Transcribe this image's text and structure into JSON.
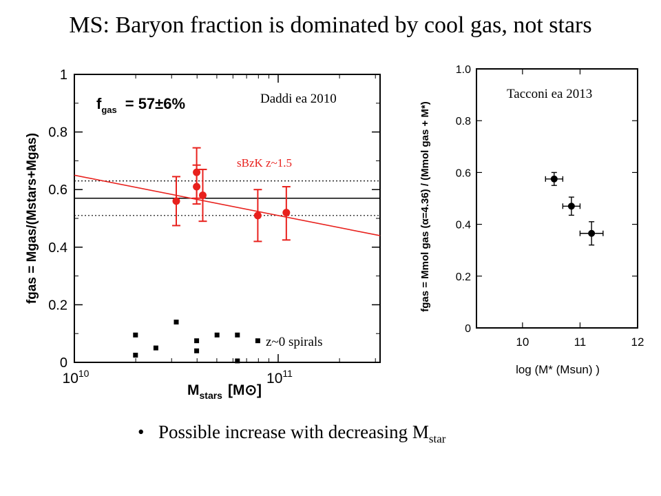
{
  "slide": {
    "title": "MS: Baryon fraction is dominated by cool gas, not stars",
    "bullet_prefix": "Possible increase with decreasing M",
    "bullet_sub": "star"
  },
  "chart_data": [
    {
      "type": "scatter",
      "annotation": "Daddi ea 2010",
      "xlabel": "M",
      "xlabel_sub": "stars",
      "xlabel_unit": "[M⊙]",
      "ylabel": "fgas = Mgas/(Mstars+Mgas)",
      "xscale": "log",
      "xlim": [
        10.0,
        11.5
      ],
      "ylim": [
        0,
        1
      ],
      "xticks_major": [
        {
          "value": 10,
          "mantissa": "10",
          "exp": "10"
        },
        {
          "value": 11,
          "mantissa": "10",
          "exp": "11"
        }
      ],
      "yticks": [
        0,
        0.2,
        0.4,
        0.6,
        0.8,
        1
      ],
      "ytick_labels": [
        "0",
        "0.2",
        "0.4",
        "0.6",
        "0.8",
        "1"
      ],
      "fgas_label": "f",
      "fgas_sub": "gas",
      "fgas_value": "= 57±6%",
      "series": [
        {
          "name": "sBzK z~1.5",
          "color": "#e8211d",
          "marker": "circle",
          "points": [
            {
              "x": 10.5,
              "y": 0.56,
              "ylo": 0.475,
              "yhi": 0.645
            },
            {
              "x": 10.6,
              "y": 0.61,
              "ylo": 0.55,
              "yhi": 0.685
            },
            {
              "x": 10.6,
              "y": 0.66,
              "ylo": 0.57,
              "yhi": 0.745
            },
            {
              "x": 10.63,
              "y": 0.58,
              "ylo": 0.49,
              "yhi": 0.67
            },
            {
              "x": 10.9,
              "y": 0.51,
              "ylo": 0.42,
              "yhi": 0.6
            },
            {
              "x": 11.04,
              "y": 0.52,
              "ylo": 0.425,
              "yhi": 0.61
            }
          ]
        },
        {
          "name": "z~0 spirals",
          "color": "#000000",
          "marker": "square",
          "points": [
            {
              "x": 10.3,
              "y": 0.095
            },
            {
              "x": 10.3,
              "y": 0.025
            },
            {
              "x": 10.4,
              "y": 0.05
            },
            {
              "x": 10.5,
              "y": 0.14
            },
            {
              "x": 10.6,
              "y": 0.075
            },
            {
              "x": 10.6,
              "y": 0.04
            },
            {
              "x": 10.7,
              "y": 0.095
            },
            {
              "x": 10.8,
              "y": 0.095
            },
            {
              "x": 10.8,
              "y": 0.005
            },
            {
              "x": 10.9,
              "y": 0.075
            }
          ]
        }
      ],
      "reference_lines": [
        {
          "type": "horizontal",
          "y": 0.57,
          "style": "solid",
          "color": "#000000"
        },
        {
          "type": "horizontal",
          "y": 0.63,
          "style": "dotted",
          "color": "#000000"
        },
        {
          "type": "horizontal",
          "y": 0.51,
          "style": "dotted",
          "color": "#000000"
        },
        {
          "type": "fit",
          "x1": 10.0,
          "y1": 0.65,
          "x2": 11.5,
          "y2": 0.44,
          "color": "#e8211d"
        }
      ]
    },
    {
      "type": "scatter",
      "annotation": "Tacconi ea 2013",
      "xlabel": "log (M* (Msun) )",
      "ylabel": "fgas = Mmol gas (α=4.36) / (Mmol gas + M*)",
      "xlim": [
        9.2,
        12
      ],
      "ylim": [
        0,
        1.0
      ],
      "xticks": [
        10,
        11,
        12
      ],
      "xtick_labels": [
        "10",
        "11",
        "12"
      ],
      "yticks": [
        0,
        0.2,
        0.4,
        0.6,
        0.8,
        1.0
      ],
      "ytick_labels": [
        "0",
        "0.2",
        "0.4",
        "0.6",
        "0.8",
        "1.0"
      ],
      "series": [
        {
          "color": "#000000",
          "marker": "circle",
          "points": [
            {
              "x": 10.55,
              "y": 0.575,
              "xerr": 0.15,
              "yerr": 0.025
            },
            {
              "x": 10.85,
              "y": 0.47,
              "xerr": 0.15,
              "yerr": 0.035
            },
            {
              "x": 11.2,
              "y": 0.365,
              "xerr": 0.2,
              "yerr": 0.045
            }
          ]
        }
      ]
    }
  ]
}
